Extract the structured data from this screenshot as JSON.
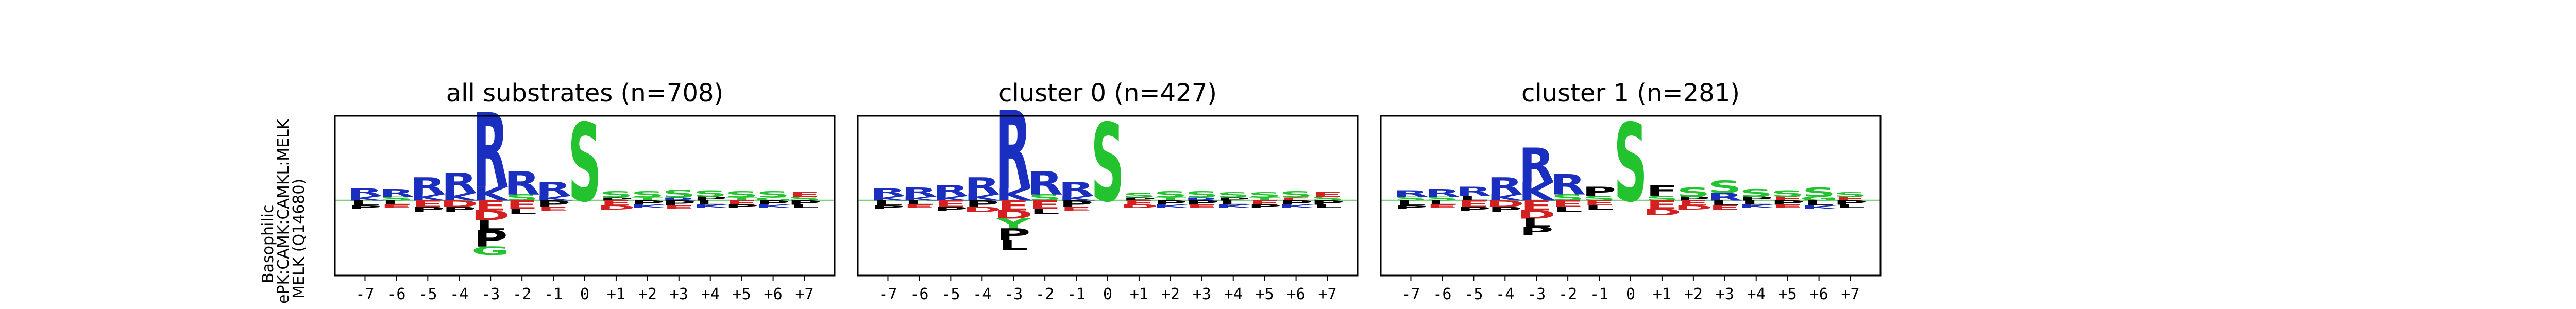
{
  "figure": {
    "ylabel_lines": [
      "Basophilic",
      "ePK:CAMK:CAMKL:MELK",
      "MELK (Q14680)"
    ]
  },
  "colors": {
    "basic": "#1a2fbf",
    "polar": "#22c32e",
    "acidic": "#d42020",
    "hydrophobic": "#000000",
    "amide": "#8b2fc9",
    "baseline": "#7fd07f"
  },
  "chart_data": [
    {
      "type": "sequence-logo",
      "title": "all substrates (n=708)",
      "x_tick_labels": [
        "-7",
        "-6",
        "-5",
        "-4",
        "-3",
        "-2",
        "-1",
        "0",
        "+1",
        "+2",
        "+3",
        "+4",
        "+5",
        "+6",
        "+7"
      ],
      "positions": [
        {
          "pos": "-7",
          "up": [
            [
              "R",
              0.1
            ],
            [
              "K",
              0.06
            ]
          ],
          "down": [
            [
              "L",
              0.06
            ],
            [
              "P",
              0.04
            ]
          ]
        },
        {
          "pos": "-6",
          "up": [
            [
              "R",
              0.1
            ],
            [
              "S",
              0.05
            ]
          ],
          "down": [
            [
              "L",
              0.05
            ],
            [
              "E",
              0.04
            ]
          ]
        },
        {
          "pos": "-5",
          "up": [
            [
              "R",
              0.22
            ],
            [
              "K",
              0.08
            ]
          ],
          "down": [
            [
              "E",
              0.08
            ],
            [
              "P",
              0.06
            ]
          ]
        },
        {
          "pos": "-4",
          "up": [
            [
              "R",
              0.26
            ],
            [
              "K",
              0.1
            ]
          ],
          "down": [
            [
              "D",
              0.08
            ],
            [
              "P",
              0.06
            ]
          ]
        },
        {
          "pos": "-3",
          "up": [
            [
              "R",
              0.95
            ],
            [
              "K",
              0.18
            ]
          ],
          "down": [
            [
              "E",
              0.12
            ],
            [
              "D",
              0.12
            ],
            [
              "L",
              0.12
            ],
            [
              "P",
              0.2
            ],
            [
              "G",
              0.1
            ]
          ]
        },
        {
          "pos": "-2",
          "up": [
            [
              "R",
              0.3
            ],
            [
              "S",
              0.08
            ]
          ],
          "down": [
            [
              "E",
              0.1
            ],
            [
              "L",
              0.06
            ]
          ]
        },
        {
          "pos": "-1",
          "up": [
            [
              "R",
              0.18
            ],
            [
              "K",
              0.06
            ]
          ],
          "down": [
            [
              "P",
              0.08
            ],
            [
              "E",
              0.05
            ]
          ]
        },
        {
          "pos": "0",
          "up": [
            [
              "S",
              1.0
            ]
          ],
          "down": []
        },
        {
          "pos": "+1",
          "up": [
            [
              "S",
              0.08
            ],
            [
              "P",
              0.04
            ]
          ],
          "down": [
            [
              "E",
              0.06
            ],
            [
              "D",
              0.05
            ]
          ]
        },
        {
          "pos": "+2",
          "up": [
            [
              "S",
              0.08
            ],
            [
              "T",
              0.04
            ]
          ],
          "down": [
            [
              "P",
              0.05
            ],
            [
              "K",
              0.04
            ]
          ]
        },
        {
          "pos": "+3",
          "up": [
            [
              "S",
              0.1
            ],
            [
              "R",
              0.04
            ]
          ],
          "down": [
            [
              "P",
              0.06
            ],
            [
              "E",
              0.04
            ]
          ]
        },
        {
          "pos": "+4",
          "up": [
            [
              "S",
              0.08
            ],
            [
              "P",
              0.05
            ]
          ],
          "down": [
            [
              "L",
              0.05
            ],
            [
              "K",
              0.04
            ]
          ]
        },
        {
          "pos": "+5",
          "up": [
            [
              "S",
              0.08
            ],
            [
              "T",
              0.04
            ]
          ],
          "down": [
            [
              "E",
              0.05
            ],
            [
              "P",
              0.04
            ]
          ]
        },
        {
          "pos": "+6",
          "up": [
            [
              "S",
              0.08
            ],
            [
              "G",
              0.04
            ]
          ],
          "down": [
            [
              "P",
              0.05
            ],
            [
              "K",
              0.04
            ]
          ]
        },
        {
          "pos": "+7",
          "up": [
            [
              "E",
              0.06
            ],
            [
              "S",
              0.05
            ]
          ],
          "down": [
            [
              "P",
              0.05
            ],
            [
              "L",
              0.04
            ]
          ]
        }
      ]
    },
    {
      "type": "sequence-logo",
      "title": "cluster 0 (n=427)",
      "x_tick_labels": [
        "-7",
        "-6",
        "-5",
        "-4",
        "-3",
        "-2",
        "-1",
        "0",
        "+1",
        "+2",
        "+3",
        "+4",
        "+5",
        "+6",
        "+7"
      ],
      "positions": [
        {
          "pos": "-7",
          "up": [
            [
              "R",
              0.1
            ],
            [
              "K",
              0.06
            ]
          ],
          "down": [
            [
              "L",
              0.06
            ],
            [
              "P",
              0.04
            ]
          ]
        },
        {
          "pos": "-6",
          "up": [
            [
              "R",
              0.12
            ],
            [
              "K",
              0.05
            ]
          ],
          "down": [
            [
              "L",
              0.05
            ],
            [
              "E",
              0.04
            ]
          ]
        },
        {
          "pos": "-5",
          "up": [
            [
              "R",
              0.14
            ],
            [
              "K",
              0.06
            ]
          ],
          "down": [
            [
              "E",
              0.08
            ],
            [
              "P",
              0.05
            ]
          ]
        },
        {
          "pos": "-4",
          "up": [
            [
              "R",
              0.22
            ],
            [
              "K",
              0.08
            ]
          ],
          "down": [
            [
              "P",
              0.08
            ],
            [
              "D",
              0.06
            ]
          ]
        },
        {
          "pos": "-3",
          "up": [
            [
              "R",
              1.0
            ],
            [
              "K",
              0.16
            ]
          ],
          "down": [
            [
              "E",
              0.12
            ],
            [
              "D",
              0.1
            ],
            [
              "Y",
              0.12
            ],
            [
              "P",
              0.14
            ],
            [
              "L",
              0.12
            ]
          ]
        },
        {
          "pos": "-2",
          "up": [
            [
              "R",
              0.3
            ],
            [
              "S",
              0.08
            ]
          ],
          "down": [
            [
              "E",
              0.1
            ],
            [
              "L",
              0.06
            ]
          ]
        },
        {
          "pos": "-1",
          "up": [
            [
              "R",
              0.18
            ],
            [
              "K",
              0.06
            ]
          ],
          "down": [
            [
              "P",
              0.08
            ],
            [
              "E",
              0.05
            ]
          ]
        },
        {
          "pos": "0",
          "up": [
            [
              "S",
              1.0
            ]
          ],
          "down": []
        },
        {
          "pos": "+1",
          "up": [
            [
              "S",
              0.06
            ],
            [
              "P",
              0.04
            ]
          ],
          "down": [
            [
              "E",
              0.05
            ],
            [
              "D",
              0.04
            ]
          ]
        },
        {
          "pos": "+2",
          "up": [
            [
              "S",
              0.08
            ],
            [
              "T",
              0.04
            ]
          ],
          "down": [
            [
              "P",
              0.05
            ],
            [
              "K",
              0.04
            ]
          ]
        },
        {
          "pos": "+3",
          "up": [
            [
              "S",
              0.08
            ],
            [
              "R",
              0.04
            ]
          ],
          "down": [
            [
              "P",
              0.05
            ],
            [
              "E",
              0.04
            ]
          ]
        },
        {
          "pos": "+4",
          "up": [
            [
              "S",
              0.07
            ],
            [
              "P",
              0.04
            ]
          ],
          "down": [
            [
              "L",
              0.05
            ],
            [
              "K",
              0.04
            ]
          ]
        },
        {
          "pos": "+5",
          "up": [
            [
              "S",
              0.07
            ],
            [
              "T",
              0.04
            ]
          ],
          "down": [
            [
              "E",
              0.05
            ],
            [
              "P",
              0.04
            ]
          ]
        },
        {
          "pos": "+6",
          "up": [
            [
              "S",
              0.08
            ],
            [
              "E",
              0.04
            ]
          ],
          "down": [
            [
              "P",
              0.05
            ],
            [
              "K",
              0.04
            ]
          ]
        },
        {
          "pos": "+7",
          "up": [
            [
              "E",
              0.06
            ],
            [
              "S",
              0.05
            ]
          ],
          "down": [
            [
              "P",
              0.05
            ],
            [
              "L",
              0.04
            ]
          ]
        }
      ]
    },
    {
      "type": "sequence-logo",
      "title": "cluster 1 (n=281)",
      "x_tick_labels": [
        "-7",
        "-6",
        "-5",
        "-4",
        "-3",
        "-2",
        "-1",
        "0",
        "+1",
        "+2",
        "+3",
        "+4",
        "+5",
        "+6",
        "+7"
      ],
      "positions": [
        {
          "pos": "-7",
          "up": [
            [
              "R",
              0.08
            ],
            [
              "S",
              0.05
            ]
          ],
          "down": [
            [
              "L",
              0.06
            ],
            [
              "P",
              0.04
            ]
          ]
        },
        {
          "pos": "-6",
          "up": [
            [
              "R",
              0.1
            ],
            [
              "S",
              0.05
            ]
          ],
          "down": [
            [
              "L",
              0.05
            ],
            [
              "E",
              0.04
            ]
          ]
        },
        {
          "pos": "-5",
          "up": [
            [
              "R",
              0.12
            ],
            [
              "L",
              0.06
            ]
          ],
          "down": [
            [
              "E",
              0.08
            ],
            [
              "P",
              0.05
            ]
          ]
        },
        {
          "pos": "-4",
          "up": [
            [
              "R",
              0.22
            ],
            [
              "K",
              0.08
            ]
          ],
          "down": [
            [
              "D",
              0.08
            ],
            [
              "P",
              0.06
            ]
          ]
        },
        {
          "pos": "-3",
          "up": [
            [
              "R",
              0.44
            ],
            [
              "K",
              0.24
            ]
          ],
          "down": [
            [
              "E",
              0.12
            ],
            [
              "D",
              0.1
            ],
            [
              "L",
              0.1
            ],
            [
              "P",
              0.1
            ]
          ]
        },
        {
          "pos": "-2",
          "up": [
            [
              "R",
              0.26
            ],
            [
              "S",
              0.08
            ]
          ],
          "down": [
            [
              "E",
              0.08
            ],
            [
              "L",
              0.06
            ]
          ]
        },
        {
          "pos": "-1",
          "up": [
            [
              "P",
              0.12
            ],
            [
              "S",
              0.06
            ]
          ],
          "down": [
            [
              "E",
              0.06
            ],
            [
              "L",
              0.05
            ]
          ]
        },
        {
          "pos": "0",
          "up": [
            [
              "S",
              1.0
            ]
          ],
          "down": []
        },
        {
          "pos": "+1",
          "up": [
            [
              "F",
              0.14
            ],
            [
              "S",
              0.06
            ]
          ],
          "down": [
            [
              "E",
              0.1
            ],
            [
              "D",
              0.08
            ]
          ]
        },
        {
          "pos": "+2",
          "up": [
            [
              "S",
              0.12
            ],
            [
              "P",
              0.05
            ]
          ],
          "down": [
            [
              "E",
              0.06
            ],
            [
              "D",
              0.05
            ]
          ]
        },
        {
          "pos": "+3",
          "up": [
            [
              "S",
              0.16
            ],
            [
              "R",
              0.1
            ]
          ],
          "down": [
            [
              "L",
              0.06
            ],
            [
              "E",
              0.05
            ]
          ]
        },
        {
          "pos": "+4",
          "up": [
            [
              "S",
              0.1
            ],
            [
              "P",
              0.05
            ]
          ],
          "down": [
            [
              "L",
              0.05
            ],
            [
              "K",
              0.04
            ]
          ]
        },
        {
          "pos": "+5",
          "up": [
            [
              "S",
              0.08
            ],
            [
              "E",
              0.05
            ]
          ],
          "down": [
            [
              "P",
              0.05
            ],
            [
              "E",
              0.04
            ]
          ]
        },
        {
          "pos": "+6",
          "up": [
            [
              "S",
              0.12
            ],
            [
              "G",
              0.05
            ]
          ],
          "down": [
            [
              "L",
              0.06
            ],
            [
              "K",
              0.04
            ]
          ]
        },
        {
          "pos": "+7",
          "up": [
            [
              "S",
              0.06
            ],
            [
              "E",
              0.05
            ]
          ],
          "down": [
            [
              "P",
              0.05
            ],
            [
              "L",
              0.04
            ]
          ]
        }
      ]
    }
  ]
}
